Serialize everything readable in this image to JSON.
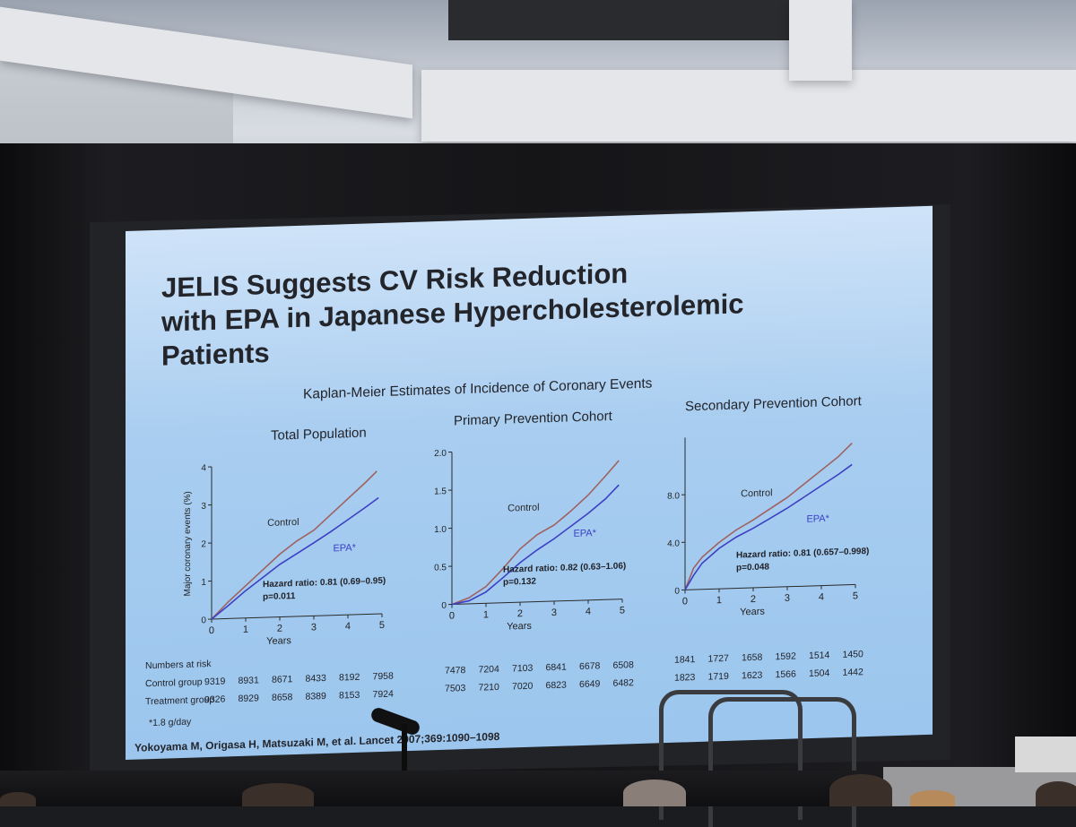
{
  "slide": {
    "title": "JELIS Suggests CV Risk Reduction\nwith EPA in Japanese Hypercholesterolemic\nPatients",
    "subtitle": "Kaplan-Meier Estimates of Incidence of Coronary Events",
    "footnote": "*1.8 g/day",
    "citation": "Yokoyama M, Origasa H, Matsuzaki M, et al. Lancet 2007;369:1090–1098"
  },
  "colors": {
    "control": "#a0605e",
    "epa": "#3b3fc4",
    "axis": "#2a2a2a"
  },
  "risk_table": {
    "header": "Numbers at risk",
    "rows": [
      "Control group",
      "Treatment group"
    ]
  },
  "chart_data": [
    {
      "type": "line",
      "title": "Total Population",
      "xlabel": "Years",
      "ylabel": "Major coronary events (%)",
      "xlim": [
        0,
        5
      ],
      "ylim": [
        0,
        4
      ],
      "xticks": [
        "0",
        "1",
        "2",
        "3",
        "4",
        "5"
      ],
      "yticks": [
        "0",
        "1",
        "2",
        "3",
        "4"
      ],
      "series": [
        {
          "name": "Control",
          "x": [
            0,
            0.5,
            1,
            1.5,
            2,
            2.5,
            3,
            3.5,
            4,
            4.5,
            4.85
          ],
          "y": [
            0,
            0.45,
            0.85,
            1.25,
            1.65,
            1.98,
            2.25,
            2.65,
            3.05,
            3.45,
            3.75
          ]
        },
        {
          "name": "EPA*",
          "x": [
            0,
            0.5,
            1,
            1.5,
            2,
            2.5,
            3,
            3.5,
            4,
            4.5,
            4.9
          ],
          "y": [
            0,
            0.35,
            0.72,
            1.05,
            1.38,
            1.65,
            1.92,
            2.2,
            2.5,
            2.8,
            3.05
          ]
        }
      ],
      "annotation": [
        "Hazard ratio: 0.81 (0.69–0.95)",
        "p=0.011"
      ],
      "numbers_at_risk": {
        "control": [
          "9319",
          "8931",
          "8671",
          "8433",
          "8192",
          "7958"
        ],
        "treatment": [
          "9326",
          "8929",
          "8658",
          "8389",
          "8153",
          "7924"
        ]
      }
    },
    {
      "type": "line",
      "title": "Primary Prevention Cohort",
      "xlabel": "Years",
      "ylabel": "",
      "xlim": [
        0,
        5
      ],
      "ylim": [
        0,
        2.0
      ],
      "xticks": [
        "0",
        "1",
        "2",
        "3",
        "4",
        "5"
      ],
      "yticks": [
        "0",
        "0.5",
        "1.0",
        "1.5",
        "2.0"
      ],
      "series": [
        {
          "name": "Control",
          "x": [
            0,
            0.5,
            1,
            1.5,
            2,
            2.5,
            3,
            3.5,
            4,
            4.5,
            4.9
          ],
          "y": [
            0,
            0.08,
            0.22,
            0.45,
            0.7,
            0.88,
            1.0,
            1.18,
            1.38,
            1.62,
            1.82
          ]
        },
        {
          "name": "EPA*",
          "x": [
            0,
            0.5,
            1,
            1.5,
            2,
            2.5,
            3,
            3.5,
            4,
            4.5,
            4.9
          ],
          "y": [
            0,
            0.04,
            0.15,
            0.33,
            0.52,
            0.68,
            0.82,
            0.98,
            1.14,
            1.32,
            1.5
          ]
        }
      ],
      "annotation": [
        "Hazard ratio: 0.82 (0.63–1.06)",
        "p=0.132"
      ],
      "numbers_at_risk": {
        "control": [
          "7478",
          "7204",
          "7103",
          "6841",
          "6678",
          "6508"
        ],
        "treatment": [
          "7503",
          "7210",
          "7020",
          "6823",
          "6649",
          "6482"
        ]
      }
    },
    {
      "type": "line",
      "title": "Secondary Prevention Cohort",
      "xlabel": "Years",
      "ylabel": "",
      "xlim": [
        0,
        5
      ],
      "ylim": [
        0,
        12.8
      ],
      "xticks": [
        "0",
        "1",
        "2",
        "3",
        "4",
        "5"
      ],
      "yticks": [
        "0",
        "4.0",
        "8.0"
      ],
      "series": [
        {
          "name": "Control",
          "x": [
            0,
            0.25,
            0.5,
            1,
            1.5,
            2,
            2.5,
            3,
            3.5,
            4,
            4.5,
            4.9
          ],
          "y": [
            0,
            1.8,
            2.7,
            3.9,
            4.9,
            5.7,
            6.6,
            7.5,
            8.6,
            9.7,
            10.8,
            11.9
          ]
        },
        {
          "name": "EPA*",
          "x": [
            0,
            0.25,
            0.5,
            1,
            1.5,
            2,
            2.5,
            3,
            3.5,
            4,
            4.5,
            4.9
          ],
          "y": [
            0,
            1.2,
            2.2,
            3.4,
            4.3,
            5.0,
            5.8,
            6.6,
            7.5,
            8.4,
            9.3,
            10.1
          ]
        }
      ],
      "annotation": [
        "Hazard ratio: 0.81 (0.657–0.998)",
        "p=0.048"
      ],
      "numbers_at_risk": {
        "control": [
          "1841",
          "1727",
          "1658",
          "1592",
          "1514",
          "1450"
        ],
        "treatment": [
          "1823",
          "1719",
          "1623",
          "1566",
          "1504",
          "1442"
        ]
      }
    }
  ]
}
